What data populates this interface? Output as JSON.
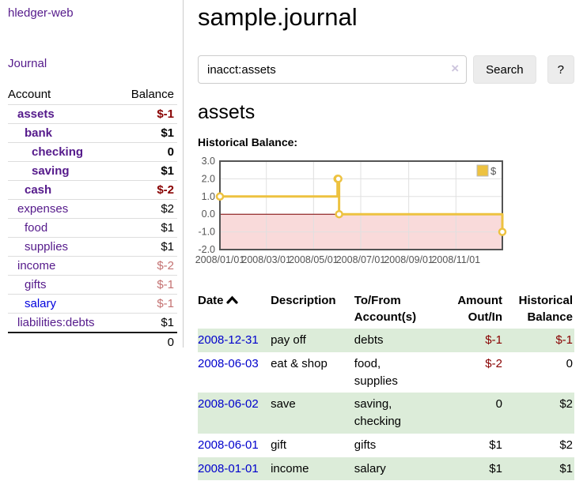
{
  "colors": {
    "link_purple": "#551a8b",
    "link_blue": "#0000dd",
    "date_link_blue": "#0000cc",
    "negative_strong": "#880000",
    "negative_soft": "#c47272",
    "row_stripe_green": "#dcecd9",
    "chart_series_gold": "#edc240",
    "chart_axis_grey": "#545454",
    "chart_grid_grey": "#e0e0e0",
    "chart_negative_fill": "#f9dada",
    "chart_zero_line_red": "#800000"
  },
  "app_title": "hledger-web",
  "sidebar": {
    "journal_link": "Journal",
    "accounts_table": {
      "headers": {
        "account": "Account",
        "balance": "Balance"
      },
      "rows": [
        {
          "name": "assets",
          "indent": 0,
          "bold": true,
          "balance": "$-1",
          "tone": "neg-strong",
          "link": "purple"
        },
        {
          "name": "bank",
          "indent": 1,
          "bold": true,
          "balance": "$1",
          "tone": "",
          "link": "purple"
        },
        {
          "name": "checking",
          "indent": 2,
          "bold": true,
          "balance": "0",
          "tone": "",
          "link": "purple"
        },
        {
          "name": "saving",
          "indent": 2,
          "bold": true,
          "balance": "$1",
          "tone": "",
          "link": "purple"
        },
        {
          "name": "cash",
          "indent": 1,
          "bold": true,
          "balance": "$-2",
          "tone": "neg-strong",
          "link": "purple"
        },
        {
          "name": "expenses",
          "indent": 0,
          "bold": false,
          "balance": "$2",
          "tone": "",
          "link": "purple"
        },
        {
          "name": "food",
          "indent": 1,
          "bold": false,
          "balance": "$1",
          "tone": "",
          "link": "purple"
        },
        {
          "name": "supplies",
          "indent": 1,
          "bold": false,
          "balance": "$1",
          "tone": "",
          "link": "purple"
        },
        {
          "name": "income",
          "indent": 0,
          "bold": false,
          "balance": "$-2",
          "tone": "neg-soft",
          "link": "purple"
        },
        {
          "name": "gifts",
          "indent": 1,
          "bold": false,
          "balance": "$-1",
          "tone": "neg-soft",
          "link": "purple"
        },
        {
          "name": "salary",
          "indent": 1,
          "bold": false,
          "balance": "$-1",
          "tone": "neg-soft",
          "link": "blue"
        },
        {
          "name": "liabilities:debts",
          "indent": 0,
          "bold": false,
          "balance": "$1",
          "tone": "",
          "link": "purple"
        }
      ],
      "total": "0"
    }
  },
  "main": {
    "title": "sample.journal",
    "search": {
      "value": "inacct:assets",
      "clear_icon": "×",
      "button_label": "Search",
      "help_label": "?"
    },
    "account_heading": "assets",
    "chart_title": "Historical Balance:",
    "register": {
      "headers": {
        "date": "Date",
        "description": "Description",
        "accounts": "To/From\nAccount(s)",
        "amount": "Amount\nOut/In",
        "balance": "Historical\nBalance"
      },
      "rows": [
        {
          "date": "2008-12-31",
          "description": "pay off",
          "accounts": "debts",
          "amount": "$-1",
          "amount_negative": true,
          "balance": "$-1",
          "balance_negative": true,
          "striped": true
        },
        {
          "date": "2008-06-03",
          "description": "eat & shop",
          "accounts": "food, supplies",
          "amount": "$-2",
          "amount_negative": true,
          "balance": "0",
          "balance_negative": false,
          "striped": false
        },
        {
          "date": "2008-06-02",
          "description": "save",
          "accounts": "saving, checking",
          "amount": "0",
          "amount_negative": false,
          "balance": "$2",
          "balance_negative": false,
          "striped": true
        },
        {
          "date": "2008-06-01",
          "description": "gift",
          "accounts": "gifts",
          "amount": "$1",
          "amount_negative": false,
          "balance": "$2",
          "balance_negative": false,
          "striped": false
        },
        {
          "date": "2008-01-01",
          "description": "income",
          "accounts": "salary",
          "amount": "$1",
          "amount_negative": false,
          "balance": "$1",
          "balance_negative": false,
          "striped": true
        }
      ]
    }
  },
  "chart_data": {
    "type": "line",
    "title": "Historical Balance:",
    "step": true,
    "legend": {
      "position": "top-right",
      "label": "$"
    },
    "series": [
      {
        "name": "$",
        "points": [
          [
            "2008-01-01",
            1
          ],
          [
            "2008-06-01",
            2
          ],
          [
            "2008-06-02",
            2
          ],
          [
            "2008-06-03",
            0
          ],
          [
            "2008-12-31",
            -1
          ]
        ]
      }
    ],
    "points_days": [
      [
        0,
        1
      ],
      [
        152,
        2
      ],
      [
        153,
        2
      ],
      [
        154,
        0
      ],
      [
        365,
        -1
      ]
    ],
    "x_range_days": [
      0,
      365
    ],
    "x_ticks": [
      {
        "day": 0,
        "label": "2008/01/01"
      },
      {
        "day": 60,
        "label": "2008/03/01"
      },
      {
        "day": 121,
        "label": "2008/05/01"
      },
      {
        "day": 182,
        "label": "2008/07/01"
      },
      {
        "day": 244,
        "label": "2008/09/01"
      },
      {
        "day": 305,
        "label": "2008/11/01"
      }
    ],
    "y_ticks": [
      {
        "v": 3,
        "label": "3.0"
      },
      {
        "v": 2,
        "label": "2.0"
      },
      {
        "v": 1,
        "label": "1.0"
      },
      {
        "v": 0,
        "label": "0.0"
      },
      {
        "v": -1,
        "label": "-1.0"
      },
      {
        "v": -2,
        "label": "-2.0"
      }
    ],
    "ylim": [
      -2,
      3
    ],
    "grid": true,
    "negative_region_shaded": true
  }
}
